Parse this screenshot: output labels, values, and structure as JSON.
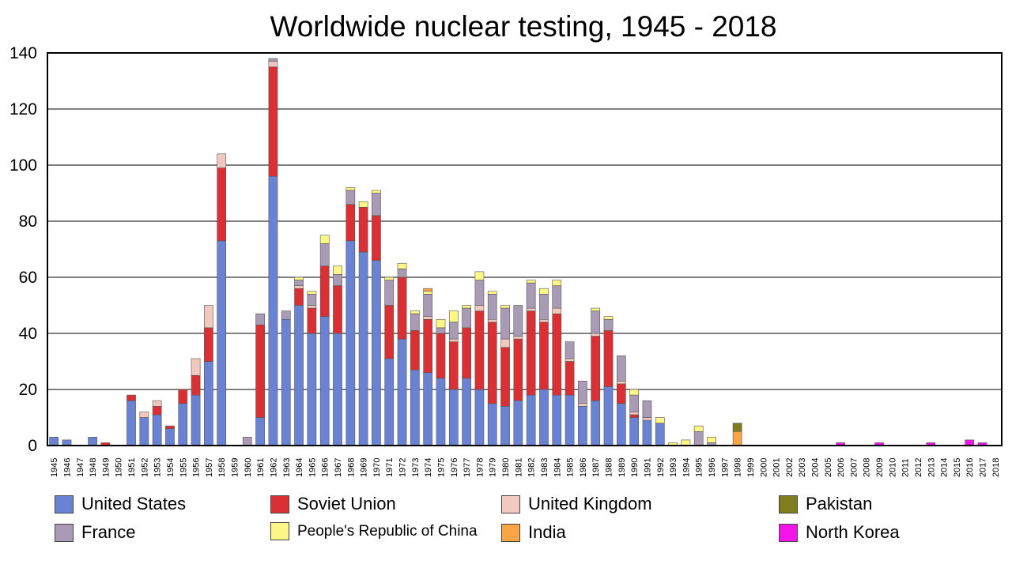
{
  "chart_data": {
    "type": "bar",
    "stacked": true,
    "title": "Worldwide nuclear testing, 1945 - 2018",
    "xlabel": "",
    "ylabel": "",
    "ylim": [
      0,
      140
    ],
    "yticks": [
      0,
      20,
      40,
      60,
      80,
      100,
      120,
      140
    ],
    "grid": true,
    "legend_position": "bottom",
    "categories": [
      "1945",
      "1946",
      "1947",
      "1948",
      "1949",
      "1950",
      "1951",
      "1952",
      "1953",
      "1954",
      "1955",
      "1956",
      "1957",
      "1958",
      "1959",
      "1960",
      "1961",
      "1962",
      "1963",
      "1964",
      "1965",
      "1966",
      "1967",
      "1968",
      "1969",
      "1970",
      "1971",
      "1972",
      "1973",
      "1974",
      "1975",
      "1976",
      "1977",
      "1978",
      "1979",
      "1980",
      "1981",
      "1982",
      "1983",
      "1984",
      "1985",
      "1986",
      "1987",
      "1988",
      "1989",
      "1990",
      "1991",
      "1992",
      "1993",
      "1994",
      "1995",
      "1996",
      "1997",
      "1998",
      "1999",
      "2000",
      "2001",
      "2002",
      "2003",
      "2004",
      "2005",
      "2006",
      "2007",
      "2008",
      "2009",
      "2010",
      "2011",
      "2012",
      "2013",
      "2014",
      "2015",
      "2016",
      "2017",
      "2018"
    ],
    "series": [
      {
        "name": "United States",
        "color": "#6a82d4",
        "values": [
          3,
          2,
          0,
          3,
          0,
          0,
          16,
          10,
          11,
          6,
          15,
          18,
          30,
          73,
          0,
          0,
          10,
          96,
          45,
          50,
          40,
          46,
          40,
          73,
          69,
          66,
          31,
          38,
          27,
          26,
          24,
          20,
          24,
          20,
          15,
          14,
          16,
          18,
          20,
          18,
          18,
          14,
          16,
          21,
          15,
          10,
          9,
          8,
          0,
          0,
          0,
          0,
          0,
          0,
          0,
          0,
          0,
          0,
          0,
          0,
          0,
          0,
          0,
          0,
          0,
          0,
          0,
          0,
          0,
          0,
          0,
          0,
          0,
          0
        ]
      },
      {
        "name": "Soviet Union",
        "color": "#dc2f33",
        "values": [
          0,
          0,
          0,
          0,
          1,
          0,
          2,
          0,
          3,
          1,
          5,
          7,
          12,
          26,
          0,
          0,
          33,
          39,
          0,
          6,
          9,
          18,
          17,
          13,
          16,
          16,
          19,
          22,
          14,
          19,
          16,
          17,
          18,
          28,
          29,
          21,
          22,
          30,
          24,
          29,
          12,
          0,
          23,
          20,
          7,
          1,
          0,
          0,
          0,
          0,
          0,
          0,
          0,
          0,
          0,
          0,
          0,
          0,
          0,
          0,
          0,
          0,
          0,
          0,
          0,
          0,
          0,
          0,
          0,
          0,
          0,
          0,
          0,
          0
        ]
      },
      {
        "name": "United Kingdom",
        "color": "#f2c9be",
        "values": [
          0,
          0,
          0,
          0,
          0,
          0,
          0,
          2,
          2,
          0,
          0,
          6,
          8,
          5,
          0,
          0,
          0,
          2,
          0,
          1,
          1,
          0,
          0,
          0,
          0,
          0,
          0,
          0,
          0,
          1,
          0,
          1,
          0,
          2,
          1,
          3,
          1,
          1,
          1,
          2,
          1,
          1,
          1,
          0,
          1,
          1,
          1,
          0,
          0,
          0,
          0,
          0,
          0,
          0,
          0,
          0,
          0,
          0,
          0,
          0,
          0,
          0,
          0,
          0,
          0,
          0,
          0,
          0,
          0,
          0,
          0,
          0,
          0,
          0
        ]
      },
      {
        "name": "France",
        "color": "#a99bb5",
        "values": [
          0,
          0,
          0,
          0,
          0,
          0,
          0,
          0,
          0,
          0,
          0,
          0,
          0,
          0,
          0,
          3,
          4,
          1,
          3,
          2,
          4,
          8,
          4,
          5,
          0,
          8,
          9,
          3,
          6,
          8,
          2,
          6,
          7,
          9,
          9,
          11,
          11,
          9,
          9,
          8,
          6,
          8,
          8,
          4,
          9,
          6,
          6,
          0,
          0,
          0,
          5,
          1,
          0,
          0,
          0,
          0,
          0,
          0,
          0,
          0,
          0,
          0,
          0,
          0,
          0,
          0,
          0,
          0,
          0,
          0,
          0,
          0,
          0,
          0
        ]
      },
      {
        "name": "People's Republic of China",
        "color": "#fff785",
        "values": [
          0,
          0,
          0,
          0,
          0,
          0,
          0,
          0,
          0,
          0,
          0,
          0,
          0,
          0,
          0,
          0,
          0,
          0,
          0,
          1,
          1,
          3,
          3,
          1,
          2,
          1,
          1,
          2,
          1,
          1,
          3,
          4,
          1,
          3,
          1,
          1,
          0,
          1,
          2,
          2,
          0,
          0,
          1,
          1,
          0,
          2,
          0,
          2,
          1,
          2,
          2,
          2,
          0,
          0,
          0,
          0,
          0,
          0,
          0,
          0,
          0,
          0,
          0,
          0,
          0,
          0,
          0,
          0,
          0,
          0,
          0,
          0,
          0,
          0
        ]
      },
      {
        "name": "India",
        "color": "#f9a547",
        "values": [
          0,
          0,
          0,
          0,
          0,
          0,
          0,
          0,
          0,
          0,
          0,
          0,
          0,
          0,
          0,
          0,
          0,
          0,
          0,
          0,
          0,
          0,
          0,
          0,
          0,
          0,
          0,
          0,
          0,
          1,
          0,
          0,
          0,
          0,
          0,
          0,
          0,
          0,
          0,
          0,
          0,
          0,
          0,
          0,
          0,
          0,
          0,
          0,
          0,
          0,
          0,
          0,
          0,
          5,
          0,
          0,
          0,
          0,
          0,
          0,
          0,
          0,
          0,
          0,
          0,
          0,
          0,
          0,
          0,
          0,
          0,
          0,
          0,
          0
        ]
      },
      {
        "name": "Pakistan",
        "color": "#807d1f",
        "values": [
          0,
          0,
          0,
          0,
          0,
          0,
          0,
          0,
          0,
          0,
          0,
          0,
          0,
          0,
          0,
          0,
          0,
          0,
          0,
          0,
          0,
          0,
          0,
          0,
          0,
          0,
          0,
          0,
          0,
          0,
          0,
          0,
          0,
          0,
          0,
          0,
          0,
          0,
          0,
          0,
          0,
          0,
          0,
          0,
          0,
          0,
          0,
          0,
          0,
          0,
          0,
          0,
          0,
          3,
          0,
          0,
          0,
          0,
          0,
          0,
          0,
          0,
          0,
          0,
          0,
          0,
          0,
          0,
          0,
          0,
          0,
          0,
          0,
          0
        ]
      },
      {
        "name": "North Korea",
        "color": "#f214e8",
        "values": [
          0,
          0,
          0,
          0,
          0,
          0,
          0,
          0,
          0,
          0,
          0,
          0,
          0,
          0,
          0,
          0,
          0,
          0,
          0,
          0,
          0,
          0,
          0,
          0,
          0,
          0,
          0,
          0,
          0,
          0,
          0,
          0,
          0,
          0,
          0,
          0,
          0,
          0,
          0,
          0,
          0,
          0,
          0,
          0,
          0,
          0,
          0,
          0,
          0,
          0,
          0,
          0,
          0,
          0,
          0,
          0,
          0,
          0,
          0,
          0,
          0,
          1,
          0,
          0,
          1,
          0,
          0,
          0,
          1,
          0,
          0,
          2,
          1,
          0
        ]
      }
    ]
  },
  "legend": {
    "items": [
      {
        "label": "United States",
        "color": "#6a82d4"
      },
      {
        "label": "Soviet Union",
        "color": "#dc2f33"
      },
      {
        "label": "United Kingdom",
        "color": "#f2c9be"
      },
      {
        "label": "Pakistan",
        "color": "#807d1f"
      },
      {
        "label": "France",
        "color": "#a99bb5"
      },
      {
        "label": "People's Republic of China",
        "color": "#fff785"
      },
      {
        "label": "India",
        "color": "#f9a547"
      },
      {
        "label": "North Korea",
        "color": "#f214e8"
      }
    ]
  }
}
